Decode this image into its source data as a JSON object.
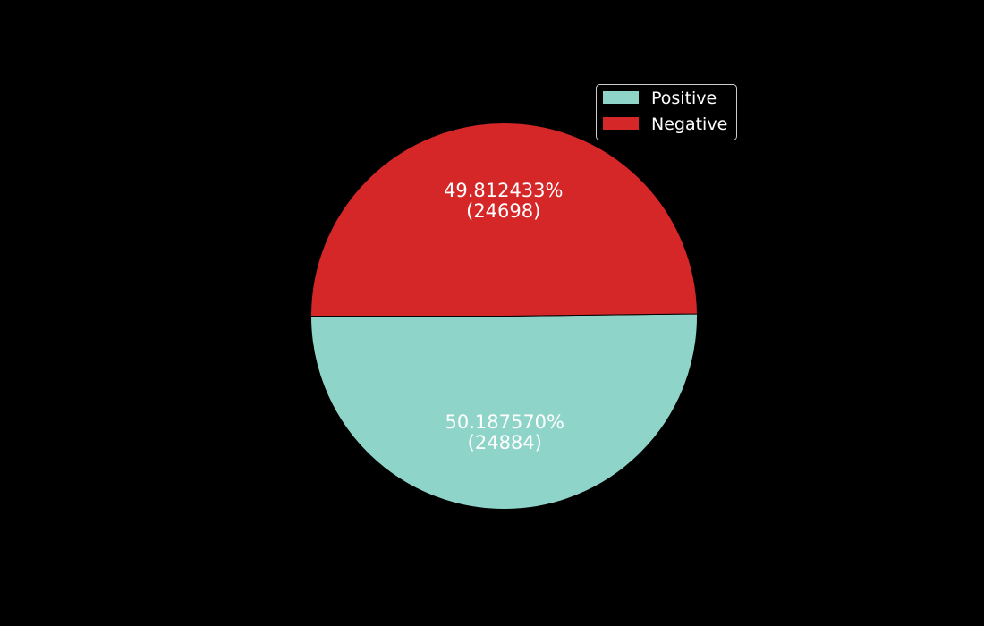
{
  "chart_data": {
    "type": "pie",
    "background": "#000000",
    "start_angle_deg": 180,
    "direction": "counterclockwise",
    "legend": "top-right",
    "slices": [
      {
        "label": "Positive",
        "value": 24884,
        "percent": 50.18757,
        "percent_text": "50.187570%",
        "count_text": "(24884)",
        "color": "#8fd4c8"
      },
      {
        "label": "Negative",
        "value": 24698,
        "percent": 49.812433,
        "percent_text": "49.812433%",
        "count_text": "(24698)",
        "color": "#d62728"
      }
    ]
  }
}
